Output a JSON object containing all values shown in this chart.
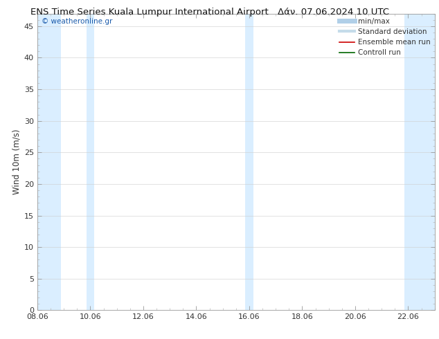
{
  "title_left": "ENS Time Series Kuala Lumpur International Airport",
  "title_right": "Δάν. 07.06.2024 10 UTC",
  "watermark": "© weatheronline.gr",
  "ylabel": "Wind 10m (m/s)",
  "ylim": [
    0,
    47
  ],
  "yticks": [
    0,
    5,
    10,
    15,
    20,
    25,
    30,
    35,
    40,
    45
  ],
  "xtick_labels": [
    "08.06",
    "10.06",
    "12.06",
    "14.06",
    "16.06",
    "18.06",
    "20.06",
    "22.06"
  ],
  "xtick_positions": [
    0,
    2,
    4,
    6,
    8,
    10,
    12,
    14
  ],
  "xlim": [
    0,
    15
  ],
  "shaded_bands": [
    {
      "x_start": 0.0,
      "x_end": 0.9,
      "color": "#daeeff"
    },
    {
      "x_start": 1.85,
      "x_end": 2.15,
      "color": "#daeeff"
    },
    {
      "x_start": 7.85,
      "x_end": 8.15,
      "color": "#daeeff"
    },
    {
      "x_start": 13.85,
      "x_end": 15.0,
      "color": "#daeeff"
    }
  ],
  "legend_items": [
    {
      "label": "min/max",
      "color": "#b0cfe8",
      "lw": 5
    },
    {
      "label": "Standard deviation",
      "color": "#c5dcea",
      "lw": 3
    },
    {
      "label": "Ensemble mean run",
      "color": "#cc0000",
      "lw": 1.2
    },
    {
      "label": "Controll run",
      "color": "#006600",
      "lw": 1.2
    }
  ],
  "bg_color": "#ffffff",
  "plot_bg_color": "#ffffff",
  "title_fontsize": 9.5,
  "tick_fontsize": 8,
  "ylabel_fontsize": 8.5,
  "watermark_fontsize": 7.5,
  "legend_fontsize": 7.5
}
